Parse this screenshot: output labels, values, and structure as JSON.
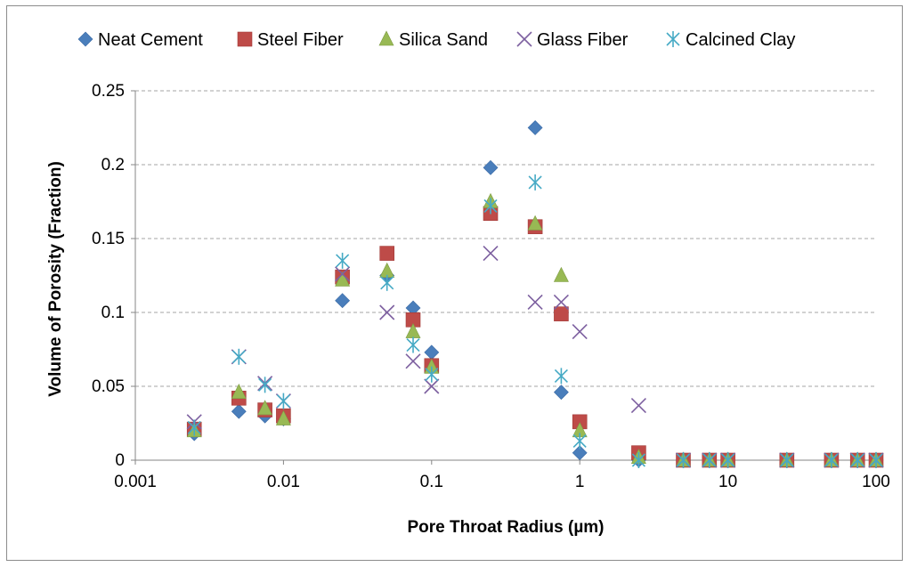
{
  "chart_data": {
    "type": "scatter",
    "title": "",
    "xlabel": "Pore Throat Radius (µm)",
    "ylabel": "Volume of Porosity (Fraction)",
    "xscale": "log",
    "xlim": [
      0.001,
      100
    ],
    "ylim": [
      0,
      0.25
    ],
    "x_ticks": [
      0.001,
      0.01,
      0.1,
      1,
      10,
      100
    ],
    "x_tick_labels": [
      "0.001",
      "0.01",
      "0.1",
      "1",
      "10",
      "100"
    ],
    "y_ticks": [
      0,
      0.05,
      0.1,
      0.15,
      0.2,
      0.25
    ],
    "y_tick_labels": [
      "0",
      "0.05",
      "0.1",
      "0.15",
      "0.2",
      "0.25"
    ],
    "grid": "horizontal dashed",
    "legend_position": "top",
    "series": [
      {
        "name": "Neat Cement",
        "marker": "diamond",
        "color": "#4a7ebb",
        "x": [
          0.0025,
          0.005,
          0.0075,
          0.01,
          0.025,
          0.05,
          0.075,
          0.1,
          0.25,
          0.5,
          0.75,
          1,
          2.5,
          5,
          7.5,
          10,
          25,
          50,
          75,
          100
        ],
        "y": [
          0.018,
          0.033,
          0.03,
          0.028,
          0.108,
          0.125,
          0.103,
          0.073,
          0.198,
          0.225,
          0.046,
          0.005,
          0.0,
          0,
          0,
          0,
          0,
          0,
          0,
          0
        ]
      },
      {
        "name": "Steel Fiber",
        "marker": "square",
        "color": "#be4b48",
        "x": [
          0.0025,
          0.005,
          0.0075,
          0.01,
          0.025,
          0.05,
          0.075,
          0.1,
          0.25,
          0.5,
          0.75,
          1,
          2.5,
          5,
          7.5,
          10,
          25,
          50,
          75,
          100
        ],
        "y": [
          0.021,
          0.042,
          0.034,
          0.03,
          0.124,
          0.14,
          0.095,
          0.064,
          0.167,
          0.158,
          0.099,
          0.026,
          0.005,
          0,
          0,
          0,
          0,
          0,
          0,
          0
        ]
      },
      {
        "name": "Silica Sand",
        "marker": "triangle",
        "color": "#98b954",
        "x": [
          0.0025,
          0.005,
          0.0075,
          0.01,
          0.025,
          0.05,
          0.075,
          0.1,
          0.25,
          0.5,
          0.75,
          1,
          2.5,
          5,
          7.5,
          10,
          25,
          50,
          75,
          100
        ],
        "y": [
          0.02,
          0.046,
          0.035,
          0.028,
          0.122,
          0.128,
          0.087,
          0.063,
          0.175,
          0.16,
          0.125,
          0.02,
          0.002,
          0,
          0,
          0,
          0,
          0,
          0,
          0
        ]
      },
      {
        "name": "Glass Fiber",
        "marker": "x",
        "color": "#7d60a0",
        "x": [
          0.0025,
          0.005,
          0.0075,
          0.01,
          0.025,
          0.05,
          0.075,
          0.1,
          0.25,
          0.5,
          0.75,
          1,
          2.5,
          5,
          7.5,
          10,
          25,
          50,
          75,
          100
        ],
        "y": [
          0.026,
          0.07,
          0.052,
          0.04,
          0.126,
          0.1,
          0.067,
          0.05,
          0.14,
          0.107,
          0.107,
          0.087,
          0.037,
          0,
          0,
          0,
          0,
          0,
          0,
          0
        ]
      },
      {
        "name": "Calcined Clay",
        "marker": "asterisk",
        "color": "#46aac5",
        "x": [
          0.0025,
          0.005,
          0.0075,
          0.01,
          0.025,
          0.05,
          0.075,
          0.1,
          0.25,
          0.5,
          0.75,
          1,
          2.5,
          5,
          7.5,
          10,
          25,
          50,
          75,
          100
        ],
        "y": [
          0.022,
          0.07,
          0.051,
          0.04,
          0.135,
          0.12,
          0.078,
          0.058,
          0.172,
          0.188,
          0.057,
          0.013,
          0.0,
          0,
          0,
          0,
          0,
          0,
          0,
          0
        ]
      }
    ]
  }
}
